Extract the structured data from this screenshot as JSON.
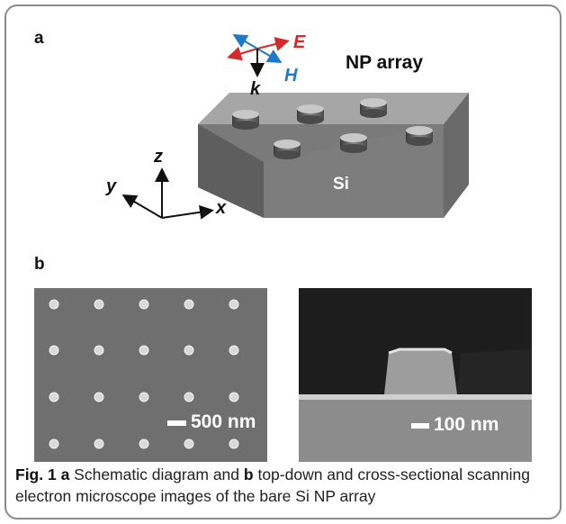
{
  "panel_a": {
    "label": "a",
    "title": "NP array",
    "substrate_label": "Si",
    "wave_labels": {
      "E": "E",
      "H": "H",
      "k": "k"
    },
    "axis_labels": {
      "x": "x",
      "y": "y",
      "z": "z"
    },
    "colors": {
      "E": "#d42a2a",
      "H": "#1f78c8",
      "k": "#111111"
    }
  },
  "panel_b": {
    "label": "b",
    "left_image_scale": "500 nm",
    "right_image_scale": "100 nm"
  },
  "caption": {
    "fig_label": "Fig. 1",
    "a": "a",
    "text1": " Schematic diagram and ",
    "b": "b",
    "text2": " top-down and cross-sectional scanning electron microscope images of the bare Si NP array"
  }
}
